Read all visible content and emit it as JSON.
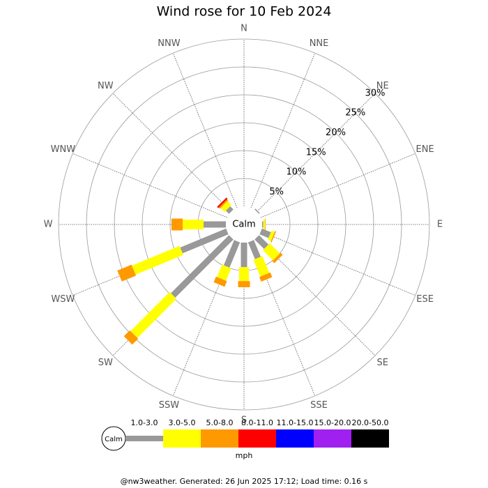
{
  "chart_data": {
    "type": "windrose",
    "title": "Wind rose for 10 Feb 2024",
    "directions": [
      "N",
      "NNE",
      "NE",
      "ENE",
      "E",
      "ESE",
      "SE",
      "SSE",
      "S",
      "SSW",
      "SW",
      "WSW",
      "W",
      "WNW",
      "NW",
      "NNW"
    ],
    "rlim": [
      0,
      30
    ],
    "rticks": [
      {
        "value": 5,
        "label": "5%"
      },
      {
        "value": 10,
        "label": "10%"
      },
      {
        "value": 15,
        "label": "15%"
      },
      {
        "value": 20,
        "label": "20%"
      },
      {
        "value": 25,
        "label": "25%"
      },
      {
        "value": 30,
        "label": "30%"
      }
    ],
    "calm_label": "Calm",
    "unit": "mph",
    "series": [
      {
        "name": "1.0-3.0",
        "color": "#999999",
        "values": [
          0,
          0,
          0.2,
          0,
          0.2,
          1.75,
          2.4,
          3.25,
          4.4,
          4.9,
          14.75,
          8.9,
          4,
          0,
          0.8,
          0
        ]
      },
      {
        "name": "3.0-5.0",
        "color": "#ffff00",
        "values": [
          0,
          0,
          0,
          0,
          0.3,
          0.6,
          2.6,
          3.25,
          2.5,
          2.4,
          9.9,
          9.25,
          3.75,
          0,
          1,
          0
        ]
      },
      {
        "name": "5.0-8.0",
        "color": "#ff9900",
        "values": [
          0,
          0,
          0,
          0,
          0.1,
          0.2,
          0.5,
          0.9,
          1.1,
          1.1,
          1.5,
          2.75,
          2,
          0,
          0.3,
          0
        ]
      },
      {
        "name": "8.0-11.0",
        "color": "#ff0000",
        "values": [
          0,
          0,
          0,
          0,
          0,
          0,
          0,
          0,
          0,
          0,
          0,
          0,
          0,
          0,
          0.3,
          0
        ]
      },
      {
        "name": "11.0-15.0",
        "color": "#0000ff",
        "values": [
          0,
          0,
          0,
          0,
          0,
          0,
          0,
          0,
          0,
          0,
          0,
          0,
          0,
          0,
          0,
          0
        ]
      },
      {
        "name": "15.0-20.0",
        "color": "#a020f0",
        "values": [
          0,
          0,
          0,
          0,
          0,
          0,
          0,
          0,
          0,
          0,
          0,
          0,
          0,
          0,
          0,
          0
        ]
      },
      {
        "name": "20.0-50.0",
        "color": "#000000",
        "values": [
          0,
          0,
          0,
          0,
          0,
          0,
          0,
          0,
          0,
          0,
          0,
          0,
          0,
          0,
          0,
          0
        ]
      }
    ],
    "footer": "@nw3weather. Generated: 26 Jun 2025 17:12; Load time: 0.16 s"
  }
}
